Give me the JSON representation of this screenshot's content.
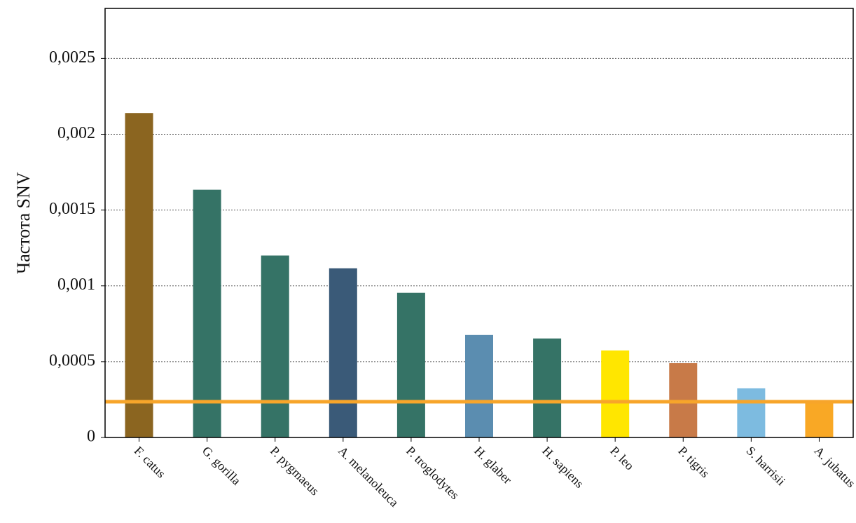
{
  "chart_data": {
    "type": "bar",
    "y_label": "Частота SNV",
    "categories": [
      "F. catus",
      "G. gorilla",
      "P. pygmaeus",
      "A. melanoleuca",
      "P. troglodytes",
      "H. glaber",
      "H. sapiens",
      "P. leo",
      "P. tigris",
      "S. harrisii",
      "A. jubatus"
    ],
    "values": [
      0.00214,
      0.001634,
      0.0012,
      0.001116,
      0.000954,
      0.000676,
      0.000653,
      0.000574,
      0.00049,
      0.000324,
      0.000241
    ],
    "colors": [
      "#8B6520",
      "#357366",
      "#357366",
      "#3A5A78",
      "#357366",
      "#5B8DB0",
      "#357366",
      "#FFE600",
      "#C87A48",
      "#7DBBE0",
      "#F9A825"
    ],
    "reference_line": {
      "value": 0.000236,
      "color": "#F7A52A"
    },
    "ylim": [
      0,
      0.00283
    ],
    "yticks": [
      0,
      {
        "value": 0.0005,
        "label": "0,0005"
      },
      {
        "value": 0.001,
        "label": "0,001"
      },
      {
        "value": 0.0015,
        "label": "0,0015"
      },
      {
        "value": 0.002,
        "label": "0,002"
      },
      {
        "value": 0.0025,
        "label": "0,0025"
      }
    ],
    "grid": true
  }
}
